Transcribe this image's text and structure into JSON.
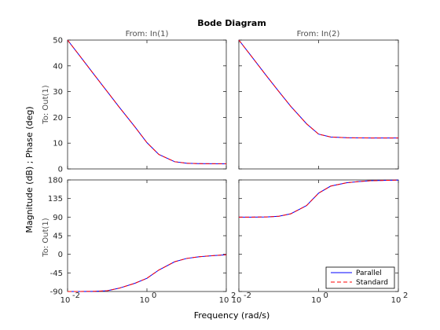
{
  "chart_data": {
    "type": "line",
    "title": "Bode Diagram",
    "xlabel": "Frequency  (rad/s)",
    "ylabel": "Magnitude (dB) ; Phase (deg)",
    "x_scale": "log",
    "xlim": [
      0.01,
      100
    ],
    "x_ticks": [
      0.01,
      1,
      100
    ],
    "x_tick_labels": [
      "10",
      "10",
      "10"
    ],
    "x_tick_exponents": [
      "-2",
      "0",
      "2"
    ],
    "grid": false,
    "legend_position": "bottom-right",
    "legend": [
      {
        "name": "Parallel",
        "color": "#0000ff",
        "style": "solid"
      },
      {
        "name": "Standard",
        "color": "#ff0000",
        "style": "dashed"
      }
    ],
    "column_titles": [
      "From: In(1)",
      "From: In(2)"
    ],
    "row_labels": [
      "To: Out(1)",
      "To: Out(1)"
    ],
    "panels": [
      {
        "row": "magnitude",
        "column": 0,
        "ylim": [
          0,
          50
        ],
        "y_ticks": [
          0,
          10,
          20,
          30,
          40,
          50
        ],
        "series": [
          {
            "name": "Parallel",
            "x": [
              0.01,
              0.02,
              0.05,
              0.1,
              0.2,
              0.5,
              1,
              2,
              5,
              10,
              20,
              50,
              100
            ],
            "y": [
              50,
              44,
              36,
              30,
              24,
              16.3,
              10.2,
              5.6,
              2.8,
              2.2,
              2.05,
              2.01,
              2
            ]
          },
          {
            "name": "Standard",
            "x": [
              0.01,
              0.02,
              0.05,
              0.1,
              0.2,
              0.5,
              1,
              2,
              5,
              10,
              20,
              50,
              100
            ],
            "y": [
              50,
              44,
              36,
              30,
              24,
              16.3,
              10.2,
              5.6,
              2.8,
              2.2,
              2.05,
              2.01,
              2
            ]
          }
        ]
      },
      {
        "row": "magnitude",
        "column": 1,
        "ylim": [
          0,
          50
        ],
        "y_ticks": [
          0,
          10,
          20,
          30,
          40,
          50
        ],
        "series": [
          {
            "name": "Parallel",
            "x": [
              0.01,
              0.02,
              0.05,
              0.1,
              0.2,
              0.5,
              1,
              2,
              5,
              10,
              20,
              50,
              100
            ],
            "y": [
              50,
              44,
              36,
              30.1,
              24.3,
              17.5,
              13.5,
              12.4,
              12.1,
              12.05,
              12.02,
              12,
              12
            ]
          },
          {
            "name": "Standard",
            "x": [
              0.01,
              0.02,
              0.05,
              0.1,
              0.2,
              0.5,
              1,
              2,
              5,
              10,
              20,
              50,
              100
            ],
            "y": [
              50,
              44,
              36,
              30.1,
              24.3,
              17.5,
              13.5,
              12.4,
              12.1,
              12.05,
              12.02,
              12,
              12
            ]
          }
        ]
      },
      {
        "row": "phase",
        "column": 0,
        "ylim": [
          -90,
          180
        ],
        "y_ticks": [
          -90,
          -45,
          0,
          45,
          90,
          135,
          180
        ],
        "series": [
          {
            "name": "Parallel",
            "x": [
              0.01,
              0.02,
              0.05,
              0.1,
              0.2,
              0.5,
              1,
              2,
              5,
              10,
              20,
              50,
              100
            ],
            "y": [
              -90,
              -90,
              -89.5,
              -88,
              -82,
              -70,
              -58,
              -38,
              -18,
              -10,
              -6,
              -3,
              -1
            ]
          },
          {
            "name": "Standard",
            "x": [
              0.01,
              0.02,
              0.05,
              0.1,
              0.2,
              0.5,
              1,
              2,
              5,
              10,
              20,
              50,
              100
            ],
            "y": [
              -90,
              -90,
              -89.5,
              -88,
              -82,
              -70,
              -58,
              -38,
              -18,
              -10,
              -6,
              -3,
              -1
            ]
          }
        ]
      },
      {
        "row": "phase",
        "column": 1,
        "ylim": [
          -90,
          180
        ],
        "y_ticks": [
          -90,
          -45,
          0,
          45,
          90,
          135,
          180
        ],
        "series": [
          {
            "name": "Parallel",
            "x": [
              0.01,
              0.02,
              0.05,
              0.1,
              0.2,
              0.5,
              1,
              2,
              5,
              10,
              20,
              50,
              100
            ],
            "y": [
              90,
              90,
              90.5,
              92,
              98,
              118,
              148,
              165,
              173,
              176,
              178,
              179,
              179.5
            ]
          },
          {
            "name": "Standard",
            "x": [
              0.01,
              0.02,
              0.05,
              0.1,
              0.2,
              0.5,
              1,
              2,
              5,
              10,
              20,
              50,
              100
            ],
            "y": [
              90,
              90,
              90.5,
              92,
              98,
              118,
              148,
              165,
              173,
              176,
              178,
              179,
              179.5
            ]
          }
        ]
      }
    ]
  }
}
